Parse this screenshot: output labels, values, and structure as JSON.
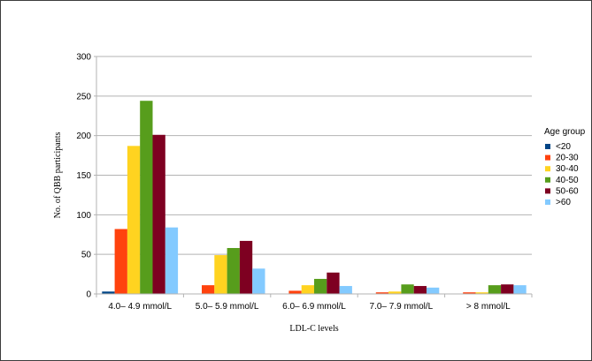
{
  "chart_data": {
    "type": "bar",
    "title": "",
    "xlabel": "LDL-C levels",
    "ylabel": "No. of QBB participants",
    "ylim": [
      0,
      300
    ],
    "yticks": [
      0,
      50,
      100,
      150,
      200,
      250,
      300
    ],
    "grid": true,
    "legend_title": "Age group",
    "legend_position": "right",
    "categories": [
      "4.0– 4.9 mmol/L",
      "5.0– 5.9 mmol/L",
      "6.0– 6.9 mmol/L",
      "7.0– 7.9 mmol/L",
      "> 8 mmol/L"
    ],
    "series": [
      {
        "name": "<20",
        "color": "#004586",
        "values": [
          3,
          0,
          0,
          0,
          0
        ]
      },
      {
        "name": "20-30",
        "color": "#ff420e",
        "values": [
          82,
          11,
          4,
          2,
          2
        ]
      },
      {
        "name": "30-40",
        "color": "#ffd320",
        "values": [
          187,
          49,
          11,
          3,
          2
        ]
      },
      {
        "name": "40-50",
        "color": "#579d1c",
        "values": [
          244,
          58,
          19,
          12,
          11
        ]
      },
      {
        "name": "50-60",
        "color": "#7e0021",
        "values": [
          201,
          67,
          27,
          10,
          12
        ]
      },
      {
        "name": ">60",
        "color": "#83caff",
        "values": [
          84,
          32,
          10,
          8,
          11
        ]
      }
    ]
  }
}
